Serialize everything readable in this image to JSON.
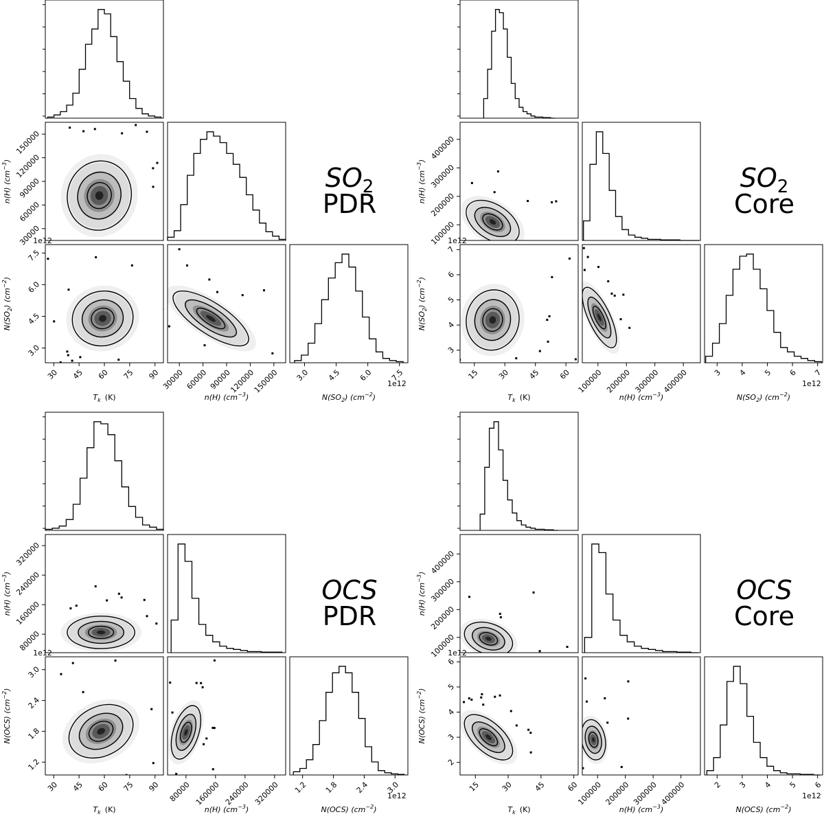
{
  "chart_data": [
    {
      "type": "corner",
      "label": {
        "molecule": "SO",
        "subscript": "2",
        "region": "PDR"
      },
      "xlabels": {
        "tk": "T",
        "tk_sub": "k",
        "tk_unit": "(K)",
        "nh": "n(H) (cm",
        "nh_sup": "−3",
        "ncol": "N(SO",
        "ncol_sub": "2",
        "ncol_unit": ") (cm",
        "ncol_sup": "−2"
      },
      "ylabels": {
        "nh": "n(H) (cm",
        "nh_sup": "−3",
        "ncol": "N(SO",
        "ncol_sub": "2",
        "ncol_unit": ") (cm",
        "ncol_sup": "−2"
      },
      "offset_text": "1e12",
      "ranges": {
        "tk": [
          25,
          95
        ],
        "nh": [
          15000,
          165000
        ],
        "ncol": [
          2.3,
          7.9
        ]
      },
      "ticks": {
        "tk": [
          30,
          45,
          60,
          75,
          90
        ],
        "nh": [
          30000,
          60000,
          90000,
          120000,
          150000
        ],
        "ncol": [
          3.0,
          4.5,
          6.0,
          7.5
        ]
      },
      "tick_labels": {
        "tk": [
          "30",
          "45",
          "60",
          "75",
          "90"
        ],
        "nh": [
          "30000",
          "60000",
          "90000",
          "120000",
          "150000"
        ],
        "ncol": [
          "3.0",
          "4.5",
          "6.0",
          "7.5"
        ]
      },
      "histograms": {
        "tk": [
          1,
          3,
          6,
          12,
          23,
          45,
          68,
          82,
          100,
          96,
          75,
          52,
          34,
          18,
          9,
          4,
          2,
          1
        ],
        "nh": [
          3,
          9,
          33,
          60,
          80,
          93,
          100,
          96,
          90,
          80,
          70,
          58,
          42,
          28,
          16,
          8,
          4,
          1
        ],
        "ncol": [
          2,
          7,
          18,
          36,
          58,
          78,
          92,
          100,
          88,
          66,
          42,
          22,
          10,
          4,
          2,
          1
        ]
      },
      "marginal_fill": [
        0.96,
        1.0,
        0.92
      ],
      "pairs": {
        "tk_nh": {
          "center": [
            57,
            72000
          ],
          "spread": [
            9.5,
            22000
          ],
          "rho": 0.05
        },
        "tk_ncol": {
          "center": [
            59,
            4.4
          ],
          "spread": [
            9.0,
            0.65
          ],
          "rho": 0.05
        },
        "nh_ncol": {
          "center": [
            70000,
            4.4
          ],
          "spread": [
            24000,
            0.65
          ],
          "rho": -0.75
        }
      }
    },
    {
      "type": "corner",
      "label": {
        "molecule": "SO",
        "subscript": "2",
        "region": "Core"
      },
      "xlabels": {
        "tk": "T",
        "tk_sub": "k",
        "tk_unit": "(K)",
        "nh": "n(H) (cm",
        "nh_sup": "−3",
        "ncol": "N(SO",
        "ncol_sub": "2",
        "ncol_unit": ") (cm",
        "ncol_sup": "−2"
      },
      "ylabels": {
        "nh": "n(H) (cm",
        "nh_sup": "−3",
        "ncol": "N(SO",
        "ncol_sub": "2",
        "ncol_unit": ") (cm",
        "ncol_sup": "−2"
      },
      "offset_text": "1e12",
      "ranges": {
        "tk": [
          8,
          66
        ],
        "nh": [
          45000,
          460000
        ],
        "ncol": [
          2.5,
          7.2
        ]
      },
      "ticks": {
        "tk": [
          15,
          30,
          45,
          60
        ],
        "nh": [
          100000,
          200000,
          300000,
          400000
        ],
        "ncol": [
          3,
          4,
          5,
          6,
          7
        ]
      },
      "tick_labels": {
        "tk": [
          "15",
          "30",
          "45",
          "60"
        ],
        "nh": [
          "100000",
          "200000",
          "300000",
          "400000"
        ],
        "ncol": [
          "3",
          "4",
          "5",
          "6",
          "7"
        ]
      },
      "histograms": {
        "tk": [
          18,
          45,
          80,
          100,
          97,
          82,
          56,
          32,
          18,
          10,
          6,
          4,
          2,
          1,
          1,
          0.5,
          0.5,
          0
        ],
        "nh": [
          18,
          70,
          100,
          80,
          46,
          22,
          10,
          5,
          3,
          2,
          1,
          1,
          0.5,
          0.5,
          0.5,
          0,
          0,
          0
        ],
        "ncol": [
          6,
          18,
          36,
          62,
          86,
          98,
          100,
          86,
          68,
          48,
          28,
          14,
          10,
          6,
          4,
          2,
          1
        ]
      },
      "marginal_fill": [
        0.6,
        0.98,
        0.98
      ],
      "pairs": {
        "tk_nh": {
          "center": [
            24,
            110000
          ],
          "spread": [
            6.5,
            38000
          ],
          "rho": -0.45
        },
        "tk_ncol": {
          "center": [
            24,
            4.2
          ],
          "spread": [
            6.5,
            0.6
          ],
          "rho": 0.05
        },
        "nh_ncol": {
          "center": [
            105000,
            4.3
          ],
          "spread": [
            30000,
            0.6
          ],
          "rho": -0.72
        }
      }
    },
    {
      "type": "corner",
      "label": {
        "molecule": "OCS",
        "subscript": "",
        "region": "PDR"
      },
      "xlabels": {
        "tk": "T",
        "tk_sub": "k",
        "tk_unit": "(K)",
        "nh": "n(H) (cm",
        "nh_sup": "−3",
        "ncol": "N(OCS) (cm",
        "ncol_sub": "",
        "ncol_unit": "",
        "ncol_sup": "−2"
      },
      "ylabels": {
        "nh": "n(H) (cm",
        "nh_sup": "−3",
        "ncol": "N(OCS) (cm",
        "ncol_sub": "",
        "ncol_unit": "",
        "ncol_sup": "−2"
      },
      "offset_text": "1e12",
      "ranges": {
        "tk": [
          25,
          95
        ],
        "nh": [
          30000,
          350000
        ],
        "ncol": [
          0.95,
          3.25
        ]
      },
      "ticks": {
        "tk": [
          30,
          45,
          60,
          75,
          90
        ],
        "nh": [
          80000,
          160000,
          240000,
          320000
        ],
        "ncol": [
          1.2,
          1.8,
          2.4,
          3.0
        ]
      },
      "tick_labels": {
        "tk": [
          "30",
          "45",
          "60",
          "75",
          "90"
        ],
        "nh": [
          "80000",
          "160000",
          "240000",
          "320000"
        ],
        "ncol": [
          "1.2",
          "1.8",
          "2.4",
          "3.0"
        ]
      },
      "histograms": {
        "tk": [
          1,
          2,
          4,
          10,
          24,
          48,
          76,
          100,
          98,
          88,
          64,
          40,
          22,
          12,
          5,
          3,
          1
        ],
        "nh": [
          30,
          100,
          84,
          50,
          26,
          16,
          10,
          6,
          4,
          3,
          2,
          1,
          1,
          0.5,
          0.5,
          0.5
        ],
        "ncol": [
          3,
          6,
          14,
          28,
          50,
          76,
          94,
          100,
          94,
          76,
          52,
          26,
          12,
          4,
          2,
          1,
          0.5
        ]
      },
      "marginal_fill": [
        1.0,
        0.94,
        0.94
      ],
      "pairs": {
        "tk_nh": {
          "center": [
            58,
            85000
          ],
          "spread": [
            10,
            22000
          ],
          "rho": 0.0
        },
        "tk_ncol": {
          "center": [
            58,
            1.8
          ],
          "spread": [
            9.5,
            0.26
          ],
          "rho": 0.25
        },
        "nh_ncol": {
          "center": [
            80000,
            1.78
          ],
          "spread": [
            20000,
            0.26
          ],
          "rho": 0.45
        }
      }
    },
    {
      "type": "corner",
      "label": {
        "molecule": "OCS",
        "subscript": "",
        "region": "Core"
      },
      "xlabels": {
        "tk": "T",
        "tk_sub": "k",
        "tk_unit": "(K)",
        "nh": "n(H) (cm",
        "nh_sup": "−3",
        "ncol": "N(OCS) (cm",
        "ncol_sub": "",
        "ncol_unit": "",
        "ncol_sup": "−2"
      },
      "ylabels": {
        "nh": "n(H) (cm",
        "nh_sup": "−3",
        "ncol": "N(OCS) (cm",
        "ncol_sub": "",
        "ncol_unit": "",
        "ncol_sup": "−2"
      },
      "offset_text": "1e12",
      "ranges": {
        "tk": [
          8,
          62
        ],
        "nh": [
          45000,
          470000
        ],
        "ncol": [
          1.5,
          6.2
        ]
      },
      "ticks": {
        "tk": [
          15,
          30,
          45,
          60
        ],
        "nh": [
          100000,
          200000,
          300000,
          400000
        ],
        "ncol": [
          2,
          3,
          4,
          5,
          6
        ]
      },
      "tick_labels": {
        "tk": [
          "15",
          "30",
          "45",
          "60"
        ],
        "nh": [
          "100000",
          "200000",
          "300000",
          "400000"
        ],
        "ncol": [
          "2",
          "3",
          "4",
          "5",
          "6"
        ]
      },
      "histograms": {
        "tk": [
          15,
          58,
          94,
          100,
          74,
          46,
          28,
          16,
          9,
          5,
          3,
          2,
          1,
          1,
          0.5,
          0.5,
          0
        ],
        "nh": [
          14,
          100,
          92,
          54,
          30,
          16,
          10,
          6,
          4,
          3,
          2,
          1,
          1,
          0.5,
          0.5,
          0
        ],
        "ncol": [
          4,
          16,
          46,
          86,
          100,
          84,
          54,
          30,
          16,
          8,
          4,
          2,
          1,
          1,
          0.5,
          0.5,
          0
        ]
      },
      "marginal_fill": [
        0.66,
        0.96,
        0.96
      ],
      "pairs": {
        "tk_nh": {
          "center": [
            21,
            95000
          ],
          "spread": [
            5.5,
            30000
          ],
          "rho": -0.3
        },
        "tk_ncol": {
          "center": [
            21,
            3.0
          ],
          "spread": [
            5.5,
            0.45
          ],
          "rho": -0.6
        },
        "nh_ncol": {
          "center": [
            85000,
            2.9
          ],
          "spread": [
            22000,
            0.4
          ],
          "rho": -0.2
        }
      }
    }
  ]
}
